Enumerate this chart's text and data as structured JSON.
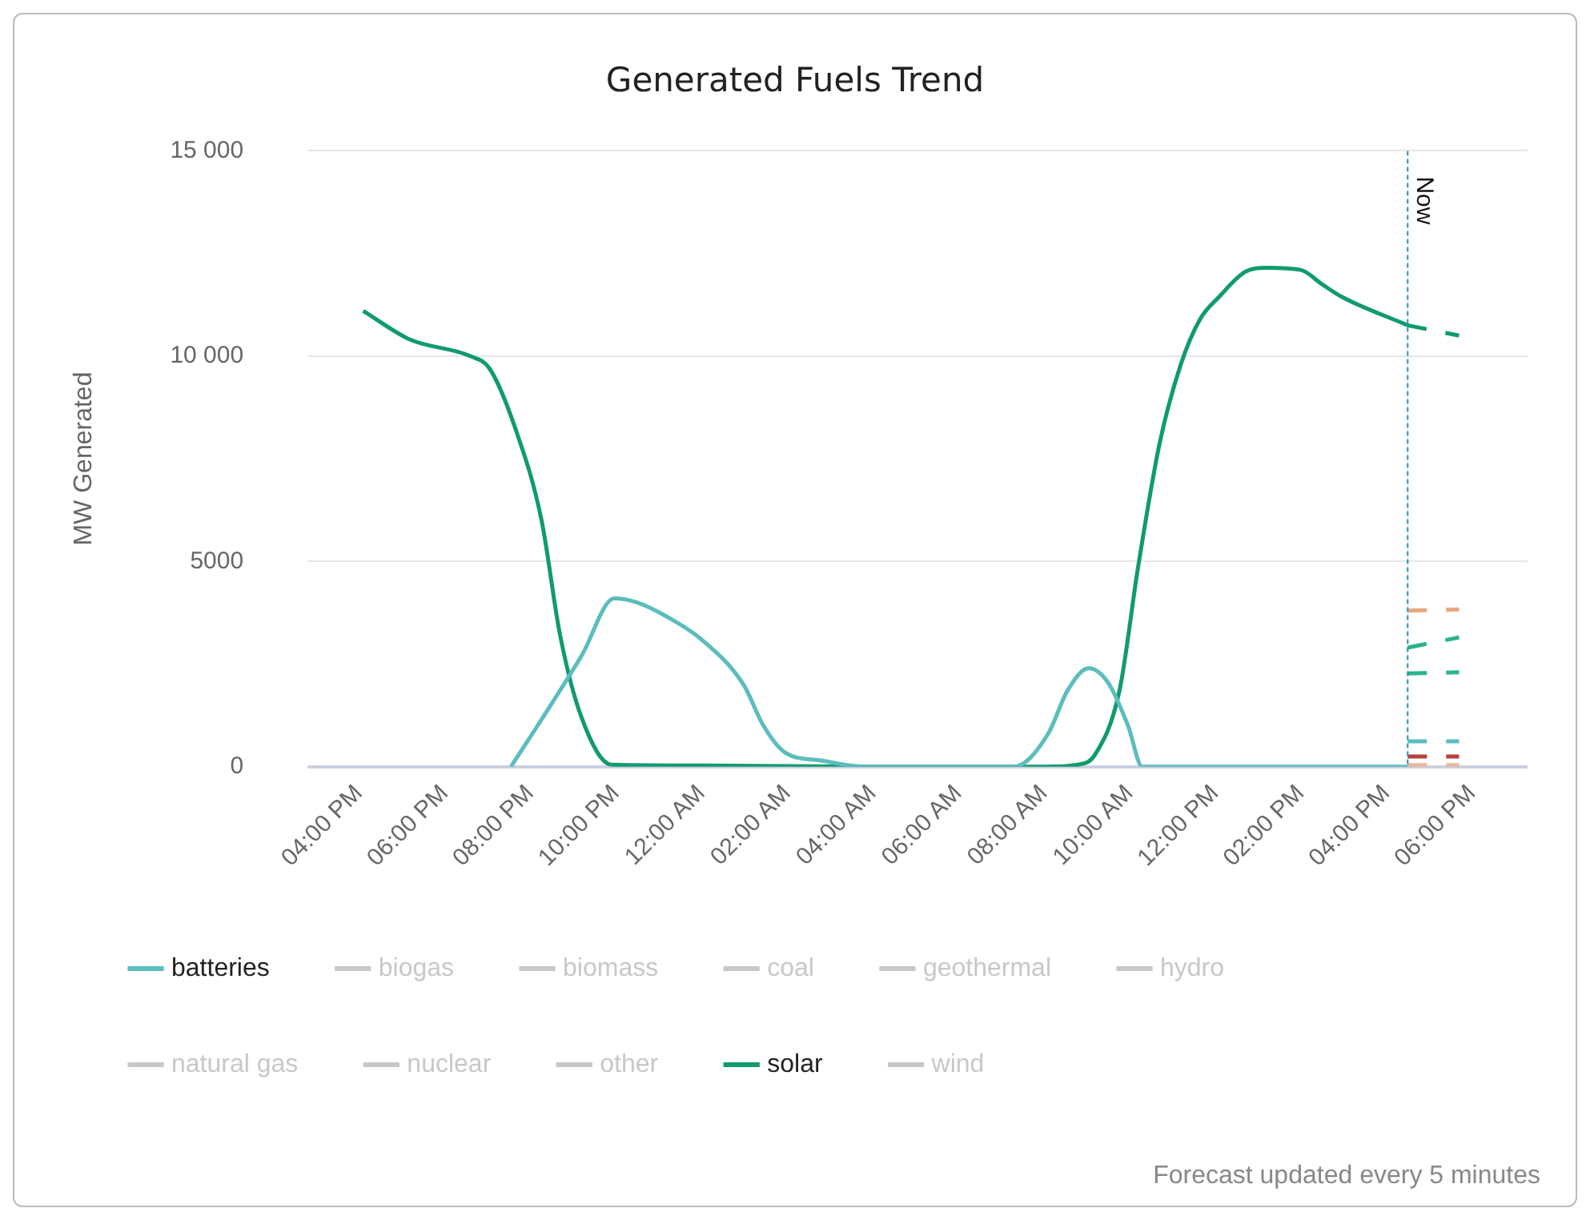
{
  "chart_data": {
    "type": "line",
    "title": "Generated Fuels Trend",
    "ylabel": "MW Generated",
    "annotations": [
      "Forecast updated every 5 minutes"
    ],
    "xlim": [
      "--05-01T14:48",
      "--05-02T19:18"
    ],
    "xticks": [
      {
        "value": "--05-01T16:00",
        "label": "04:00 PM"
      },
      {
        "value": "--05-01T18:00",
        "label": "06:00 PM"
      },
      {
        "value": "--05-01T20:00",
        "label": "08:00 PM"
      },
      {
        "value": "--05-01T22:00",
        "label": "10:00 PM"
      },
      {
        "value": "--05-02T00:00",
        "label": "12:00 AM"
      },
      {
        "value": "--05-02T02:00",
        "label": "02:00 AM"
      },
      {
        "value": "--05-02T04:00",
        "label": "04:00 AM"
      },
      {
        "value": "--05-02T06:00",
        "label": "06:00 AM"
      },
      {
        "value": "--05-02T08:00",
        "label": "08:00 AM"
      },
      {
        "value": "--05-02T10:00",
        "label": "10:00 AM"
      },
      {
        "value": "--05-02T12:00",
        "label": "12:00 PM"
      },
      {
        "value": "--05-02T14:00",
        "label": "02:00 PM"
      },
      {
        "value": "--05-02T16:00",
        "label": "04:00 PM"
      },
      {
        "value": "--05-02T18:00",
        "label": "06:00 PM"
      }
    ],
    "ylim": [
      0,
      15000
    ],
    "yticks": [
      0,
      5000,
      {
        "value": 10000,
        "label": "10 000"
      },
      {
        "value": 15000,
        "label": "15 000"
      }
    ],
    "grid": "y",
    "legend": "bottom",
    "marker": "none",
    "line_style": "solid",
    "ref_lines": [
      {
        "axis": "x",
        "value": "--05-02T16:30",
        "label": "Now",
        "color": "#2a8fc0",
        "line_style": "dashed"
      }
    ],
    "series": [
      {
        "name": "batteries",
        "color": "#5bbdbd",
        "x": [
          "--05-01T19:33",
          "--05-01T20:16",
          "--05-01T21:12",
          "--05-01T21:58",
          "--05-01T22:30",
          "--05-01T23:12",
          "--05-02T00:00",
          "--05-02T00:59",
          "--05-02T01:27",
          "--05-02T01:57",
          "--05-02T02:48",
          "--05-02T03:48",
          "--05-02T07:18",
          "--05-02T08:06",
          "--05-02T08:33",
          "--05-02T09:03",
          "--05-02T09:30",
          "--05-02T09:58",
          "--05-02T10:18",
          "--05-02T16:30"
        ],
        "values": [
          0,
          1150,
          2700,
          4100,
          4000,
          3650,
          3100,
          2000,
          1000,
          350,
          150,
          0,
          0,
          800,
          1850,
          2400,
          2050,
          1000,
          0,
          0
        ]
      },
      {
        "name": "biogas",
        "color": "#c8c8c8"
      },
      {
        "name": "biomass",
        "color": "#c8c8c8"
      },
      {
        "name": "coal",
        "color": "#c8c8c8"
      },
      {
        "name": "geothermal",
        "color": "#c8c8c8"
      },
      {
        "name": "hydro",
        "color": "#c8c8c8"
      },
      {
        "name": "natural gas",
        "color": "#c8c8c8"
      },
      {
        "name": "nuclear",
        "color": "#c8c8c8"
      },
      {
        "name": "other",
        "color": "#c8c8c8"
      },
      {
        "name": "solar",
        "color": "#109b6e",
        "x": [
          "--05-01T16:06",
          "--05-01T17:12",
          "--05-01T18:36",
          "--05-01T19:03",
          "--05-01T19:40",
          "--05-01T20:16",
          "--05-01T20:42",
          "--05-01T21:12",
          "--05-01T21:54",
          "--05-02T00:00",
          "--05-02T04:00",
          "--05-02T08:00",
          "--05-02T08:48",
          "--05-02T09:12",
          "--05-02T09:46",
          "--05-02T10:12",
          "--05-02T10:42",
          "--05-02T11:12",
          "--05-02T11:39",
          "--05-02T12:06",
          "--05-02T12:42",
          "--05-02T13:12",
          "--05-02T14:00",
          "--05-02T14:30",
          "--05-02T14:57",
          "--05-02T16:30"
        ],
        "values": [
          11100,
          10400,
          10000,
          9700,
          8200,
          6000,
          3200,
          1200,
          50,
          30,
          0,
          0,
          50,
          300,
          1850,
          4850,
          7850,
          9800,
          10900,
          11450,
          12050,
          12150,
          12100,
          11750,
          11450,
          10750
        ]
      },
      {
        "name": "wind",
        "color": "#c8c8c8"
      },
      {
        "color": "#109b6e",
        "type": "line",
        "line_style": "dashed",
        "x": [
          "--05-02T16:30",
          "--05-02T17:42"
        ],
        "values": [
          10750,
          10500
        ]
      },
      {
        "color": "#5bbdbd",
        "type": "line",
        "line_style": "dashed",
        "x": [
          "--05-02T16:30",
          "--05-02T17:42"
        ],
        "values": [
          620,
          620
        ]
      },
      {
        "color": "#e8a87c",
        "type": "line",
        "line_style": "dashed",
        "x": [
          "--05-02T16:30",
          "--05-02T17:42"
        ],
        "values": [
          3800,
          3830
        ]
      },
      {
        "color": "#2bb58a",
        "type": "line",
        "line_style": "dashed",
        "x": [
          "--05-02T16:30",
          "--05-02T17:42"
        ],
        "values": [
          2900,
          3150
        ]
      },
      {
        "color": "#2bb58a",
        "type": "line",
        "line_style": "dashed",
        "x": [
          "--05-02T16:30",
          "--05-02T17:42"
        ],
        "values": [
          2270,
          2300
        ]
      },
      {
        "color": "#b5403a",
        "type": "line",
        "line_style": "dashed",
        "x": [
          "--05-02T16:30",
          "--05-02T17:42"
        ],
        "values": [
          250,
          250
        ]
      },
      {
        "color": "#e8b89a",
        "type": "line",
        "line_style": "dashed",
        "x": [
          "--05-02T16:30",
          "--05-02T17:42"
        ],
        "values": [
          40,
          40
        ]
      }
    ]
  }
}
